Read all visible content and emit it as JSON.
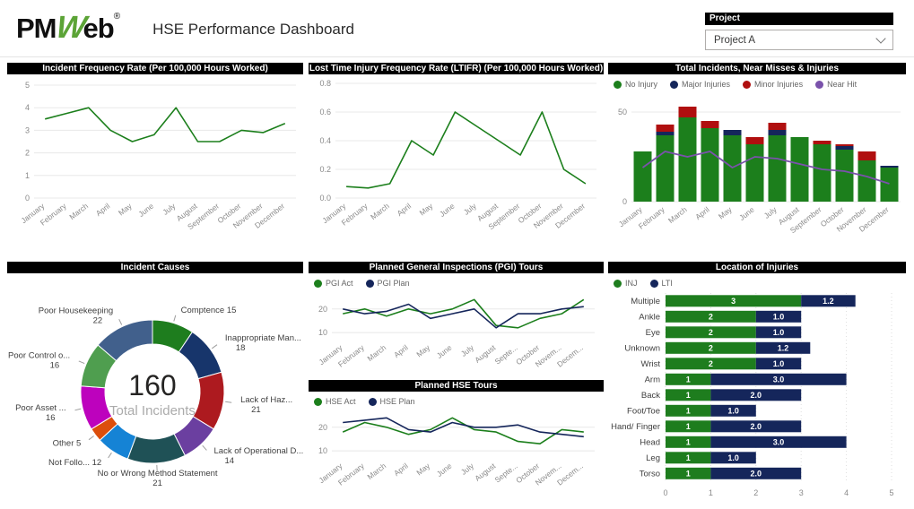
{
  "header": {
    "logo": {
      "pm": "PM",
      "w": "W",
      "eb": "eb",
      "reg": "®"
    },
    "title": "HSE Performance Dashboard",
    "project_filter": {
      "label": "Project",
      "selected": "Project A"
    }
  },
  "chart_data": [
    {
      "id": "ifr",
      "type": "line",
      "title": "Incident Frequency Rate (Per 100,000 Hours Worked)",
      "categories": [
        "January",
        "February",
        "March",
        "April",
        "May",
        "June",
        "July",
        "August",
        "September",
        "October",
        "November",
        "December"
      ],
      "ylim": [
        0,
        5
      ],
      "yticks": [
        0,
        1,
        2,
        3,
        4,
        5
      ],
      "yticklabels": [
        "0",
        "1",
        "2",
        "3",
        "4",
        "5"
      ],
      "grid": true,
      "series": [
        {
          "name": "Incident Frequency Rate",
          "color": "#1C7F1C",
          "values": [
            3.5,
            3.75,
            4.0,
            3.0,
            2.5,
            2.8,
            4.0,
            2.5,
            2.5,
            3.0,
            2.9,
            3.3
          ]
        }
      ]
    },
    {
      "id": "ltifr",
      "type": "line",
      "title": "Lost Time Injury Frequency Rate (LTIFR) (Per 100,000 Hours Worked)",
      "categories": [
        "January",
        "February",
        "March",
        "April",
        "May",
        "June",
        "July",
        "August",
        "September",
        "October",
        "November",
        "December"
      ],
      "ylim": [
        0,
        0.8
      ],
      "yticks": [
        0,
        0.2,
        0.4,
        0.6,
        0.8
      ],
      "yticklabels": [
        "0.0",
        "0.2",
        "0.4",
        "0.6",
        "0.8"
      ],
      "grid": true,
      "series": [
        {
          "name": "LTIFR",
          "color": "#1C7F1C",
          "values": [
            0.08,
            0.07,
            0.1,
            0.4,
            0.3,
            0.6,
            0.5,
            0.4,
            0.3,
            0.6,
            0.2,
            0.1
          ]
        }
      ]
    },
    {
      "id": "incidents",
      "type": "stacked-bar-line",
      "title": "Total Incidents, Near Misses & Injuries",
      "categories": [
        "January",
        "February",
        "March",
        "April",
        "May",
        "June",
        "July",
        "August",
        "September",
        "October",
        "November",
        "December"
      ],
      "ylim": [
        0,
        58
      ],
      "yticks": [
        0,
        50
      ],
      "yticklabels": [
        "0",
        "50"
      ],
      "legend_position": "top",
      "bar_series": [
        {
          "name": "No Injury",
          "color": "#1C7F1C",
          "values": [
            28,
            37,
            47,
            41,
            37,
            32,
            37,
            36,
            32,
            29,
            23,
            19
          ]
        },
        {
          "name": "Major Injuries",
          "color": "#15265B",
          "values": [
            0,
            2,
            0,
            0,
            3,
            0,
            3,
            0,
            0,
            2,
            0,
            1
          ]
        },
        {
          "name": "Minor Injuries",
          "color": "#B00F0F",
          "values": [
            0,
            4,
            6,
            4,
            0,
            4,
            4,
            0,
            2,
            1,
            5,
            0
          ]
        }
      ],
      "line_series": [
        {
          "name": "Near Hit",
          "color": "#7A52AB",
          "values": [
            19,
            28,
            25,
            28,
            19,
            25,
            24,
            21,
            18,
            17,
            14,
            10
          ]
        }
      ]
    },
    {
      "id": "causes",
      "type": "donut",
      "title": "Incident Causes",
      "center_value": "160",
      "center_label": "Total Incidents",
      "slices": [
        {
          "label": "Comptence",
          "value": 15,
          "color": "#1E7D1E",
          "label_lines": [
            "Comptence 15"
          ]
        },
        {
          "label": "Inappropriate Man...",
          "value": 18,
          "color": "#17356B",
          "label_lines": [
            "Inappropriate Man...",
            "18"
          ]
        },
        {
          "label": "Lack of Haz...",
          "value": 21,
          "color": "#AD1A1F",
          "label_lines": [
            "Lack of Haz...",
            "21"
          ]
        },
        {
          "label": "Lack of Operational D...",
          "value": 14,
          "color": "#6B3FA0",
          "label_lines": [
            "Lack of Operational D...",
            "14"
          ]
        },
        {
          "label": "No or Wrong Method Statement",
          "value": 21,
          "color": "#1F5156",
          "label_lines": [
            "No or Wrong Method Statement",
            "21"
          ]
        },
        {
          "label": "Not Follo...",
          "value": 12,
          "color": "#1583D5",
          "label_lines": [
            "Not Follo... 12"
          ]
        },
        {
          "label": "Other",
          "value": 5,
          "color": "#DC4E0C",
          "label_lines": [
            "Other 5"
          ]
        },
        {
          "label": "Poor Asset ...",
          "value": 16,
          "color": "#BD02BD",
          "label_lines": [
            "Poor Asset ...",
            "16"
          ]
        },
        {
          "label": "Poor Control o...",
          "value": 16,
          "color": "#4F9E4F",
          "label_lines": [
            "Poor Control o...",
            "16"
          ]
        },
        {
          "label": "Poor Housekeeping",
          "value": 22,
          "color": "#41608C",
          "label_lines": [
            "Poor Housekeeping",
            "22"
          ]
        }
      ]
    },
    {
      "id": "pgi",
      "type": "line",
      "title": "Planned General Inspections (PGI) Tours",
      "categories": [
        "January",
        "February",
        "March",
        "April",
        "May",
        "June",
        "July",
        "August",
        "Septe...",
        "October",
        "Novem...",
        "Decem..."
      ],
      "ylim": [
        7,
        26
      ],
      "yticks": [
        10,
        20
      ],
      "yticklabels": [
        "10",
        "20"
      ],
      "grid": true,
      "legend_position": "top",
      "series": [
        {
          "name": "PGI Act",
          "color": "#1C7F1C",
          "values": [
            18,
            20,
            17,
            20,
            18,
            20,
            24,
            13,
            12,
            16,
            18,
            24
          ]
        },
        {
          "name": "PGI Plan",
          "color": "#15265B",
          "values": [
            20,
            18,
            19,
            22,
            16,
            18,
            20,
            12,
            18,
            18,
            20,
            21
          ]
        }
      ]
    },
    {
      "id": "hse",
      "type": "line",
      "title": "Planned HSE Tours",
      "categories": [
        "January",
        "February",
        "March",
        "April",
        "May",
        "June",
        "July",
        "August",
        "Septe...",
        "October",
        "Novem...",
        "Decem..."
      ],
      "ylim": [
        7,
        26
      ],
      "yticks": [
        10,
        20
      ],
      "yticklabels": [
        "10",
        "20"
      ],
      "grid": true,
      "legend_position": "top",
      "series": [
        {
          "name": "HSE Act",
          "color": "#1C7F1C",
          "values": [
            18,
            22,
            20,
            17,
            19,
            24,
            19,
            18,
            14,
            13,
            19,
            18
          ]
        },
        {
          "name": "HSE Plan",
          "color": "#15265B",
          "values": [
            22,
            23,
            24,
            19,
            18,
            22,
            20,
            20,
            21,
            18,
            17,
            16
          ]
        }
      ]
    },
    {
      "id": "location",
      "type": "hbar",
      "title": "Location of Injuries",
      "categories": [
        "Multiple",
        "Ankle",
        "Eye",
        "Unknown",
        "Wrist",
        "Arm",
        "Back",
        "Foot/Toe",
        "Hand/ Finger",
        "Head",
        "Leg",
        "Torso"
      ],
      "xlim": [
        0,
        5
      ],
      "xticks": [
        0,
        1,
        2,
        3,
        4,
        5
      ],
      "xticklabels": [
        "0",
        "1",
        "2",
        "3",
        "4",
        "5"
      ],
      "legend_position": "top",
      "series": [
        {
          "name": "INJ",
          "color": "#1E7D1E",
          "values": [
            3,
            2,
            2,
            2,
            2,
            1,
            1,
            1,
            1,
            1,
            1,
            1
          ],
          "labels": [
            "3",
            "2",
            "2",
            "2",
            "2",
            "1",
            "1",
            "1",
            "1",
            "1",
            "1",
            "1"
          ]
        },
        {
          "name": "LTI",
          "color": "#15265B",
          "values": [
            1.2,
            1.0,
            1.0,
            1.2,
            1.0,
            3.0,
            2.0,
            1.0,
            2.0,
            3.0,
            1.0,
            2.0
          ],
          "labels": [
            "1.2",
            "1.0",
            "1.0",
            "1.2",
            "1.0",
            "3.0",
            "2.0",
            "1.0",
            "2.0",
            "3.0",
            "1.0",
            "2.0"
          ]
        }
      ]
    }
  ]
}
